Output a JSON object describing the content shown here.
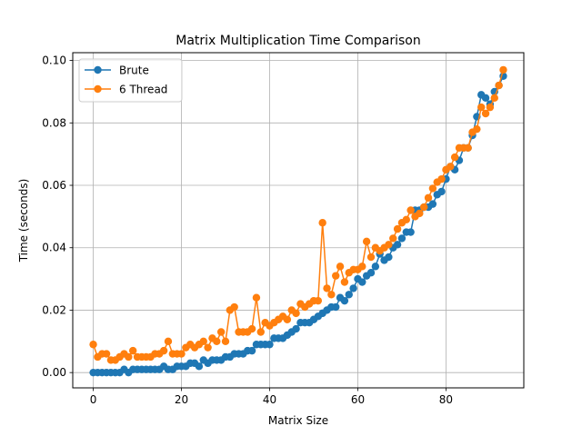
{
  "chart_data": {
    "type": "line",
    "title": "Matrix Multiplication Time Comparison",
    "xlabel": "Matrix Size",
    "ylabel": "Time (seconds)",
    "xlim": [
      -4.65,
      97.65
    ],
    "ylim": [
      -0.0049,
      0.1025
    ],
    "xticks": [
      0,
      20,
      40,
      60,
      80
    ],
    "yticks": [
      0.0,
      0.02,
      0.04,
      0.06,
      0.08,
      0.1
    ],
    "xtick_labels": [
      "0",
      "20",
      "40",
      "60",
      "80"
    ],
    "ytick_labels": [
      "0.00",
      "0.02",
      "0.04",
      "0.06",
      "0.08",
      "0.10"
    ],
    "grid": true,
    "legend_position": "upper-left",
    "series": [
      {
        "name": "Brute",
        "color": "#1f77b4",
        "marker": "circle",
        "x": [
          0,
          1,
          2,
          3,
          4,
          5,
          6,
          7,
          8,
          9,
          10,
          11,
          12,
          13,
          14,
          15,
          16,
          17,
          18,
          19,
          20,
          21,
          22,
          23,
          24,
          25,
          26,
          27,
          28,
          29,
          30,
          31,
          32,
          33,
          34,
          35,
          36,
          37,
          38,
          39,
          40,
          41,
          42,
          43,
          44,
          45,
          46,
          47,
          48,
          49,
          50,
          51,
          52,
          53,
          54,
          55,
          56,
          57,
          58,
          59,
          60,
          61,
          62,
          63,
          64,
          65,
          66,
          67,
          68,
          69,
          70,
          71,
          72,
          73,
          74,
          75,
          76,
          77,
          78,
          79,
          80,
          81,
          82,
          83,
          84,
          85,
          86,
          87,
          88,
          89,
          90,
          91,
          92,
          93
        ],
        "values": [
          0.0,
          0.0,
          0.0,
          0.0,
          0.0,
          0.0,
          0.0,
          0.001,
          0.0,
          0.001,
          0.001,
          0.001,
          0.001,
          0.001,
          0.001,
          0.001,
          0.002,
          0.001,
          0.001,
          0.002,
          0.002,
          0.002,
          0.003,
          0.003,
          0.002,
          0.004,
          0.003,
          0.004,
          0.004,
          0.004,
          0.005,
          0.005,
          0.006,
          0.006,
          0.006,
          0.007,
          0.007,
          0.009,
          0.009,
          0.009,
          0.009,
          0.011,
          0.011,
          0.011,
          0.012,
          0.013,
          0.014,
          0.016,
          0.016,
          0.016,
          0.017,
          0.018,
          0.019,
          0.02,
          0.021,
          0.021,
          0.024,
          0.023,
          0.025,
          0.027,
          0.03,
          0.029,
          0.031,
          0.032,
          0.034,
          0.038,
          0.036,
          0.037,
          0.04,
          0.041,
          0.043,
          0.045,
          0.045,
          0.052,
          0.052,
          0.053,
          0.053,
          0.054,
          0.057,
          0.058,
          0.062,
          0.066,
          0.065,
          0.068,
          0.072,
          0.072,
          0.076,
          0.082,
          0.089,
          0.088,
          0.086,
          0.09,
          0.092,
          0.095
        ]
      },
      {
        "name": "6 Thread",
        "color": "#ff7f0e",
        "marker": "circle",
        "x": [
          0,
          1,
          2,
          3,
          4,
          5,
          6,
          7,
          8,
          9,
          10,
          11,
          12,
          13,
          14,
          15,
          16,
          17,
          18,
          19,
          20,
          21,
          22,
          23,
          24,
          25,
          26,
          27,
          28,
          29,
          30,
          31,
          32,
          33,
          34,
          35,
          36,
          37,
          38,
          39,
          40,
          41,
          42,
          43,
          44,
          45,
          46,
          47,
          48,
          49,
          50,
          51,
          52,
          53,
          54,
          55,
          56,
          57,
          58,
          59,
          60,
          61,
          62,
          63,
          64,
          65,
          66,
          67,
          68,
          69,
          70,
          71,
          72,
          73,
          74,
          75,
          76,
          77,
          78,
          79,
          80,
          81,
          82,
          83,
          84,
          85,
          86,
          87,
          88,
          89,
          90,
          91,
          92,
          93
        ],
        "values": [
          0.009,
          0.005,
          0.006,
          0.006,
          0.004,
          0.004,
          0.005,
          0.006,
          0.005,
          0.007,
          0.005,
          0.005,
          0.005,
          0.005,
          0.006,
          0.006,
          0.007,
          0.01,
          0.006,
          0.006,
          0.006,
          0.008,
          0.009,
          0.008,
          0.009,
          0.01,
          0.008,
          0.011,
          0.01,
          0.013,
          0.01,
          0.02,
          0.021,
          0.013,
          0.013,
          0.013,
          0.014,
          0.024,
          0.013,
          0.016,
          0.015,
          0.016,
          0.017,
          0.018,
          0.017,
          0.02,
          0.019,
          0.022,
          0.021,
          0.022,
          0.023,
          0.023,
          0.048,
          0.027,
          0.025,
          0.031,
          0.034,
          0.029,
          0.032,
          0.033,
          0.033,
          0.034,
          0.042,
          0.037,
          0.04,
          0.039,
          0.04,
          0.041,
          0.043,
          0.046,
          0.048,
          0.049,
          0.052,
          0.05,
          0.051,
          0.053,
          0.056,
          0.059,
          0.061,
          0.062,
          0.065,
          0.066,
          0.069,
          0.072,
          0.072,
          0.072,
          0.077,
          0.078,
          0.085,
          0.083,
          0.085,
          0.088,
          0.092,
          0.097
        ]
      }
    ]
  }
}
